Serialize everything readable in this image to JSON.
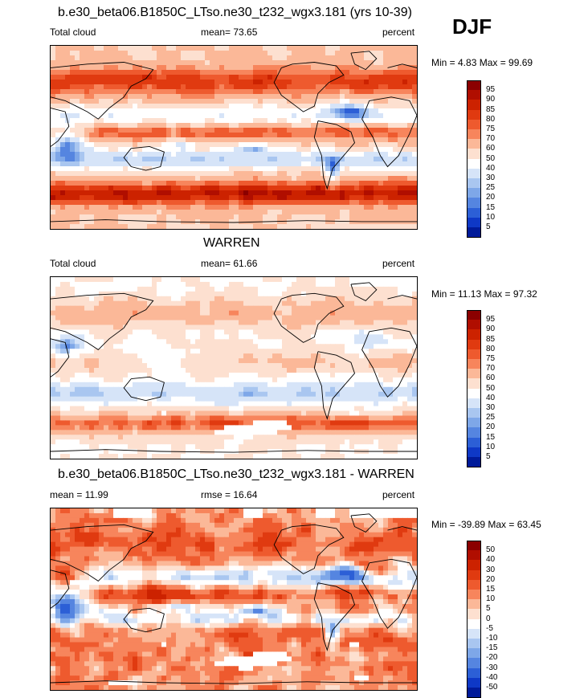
{
  "season": "DJF",
  "panels": [
    {
      "title": "b.e30_beta06.B1850C_LTso.ne30_t232_wgx3.181 (yrs 10-39)",
      "left_label": "Total cloud",
      "center_label": "mean=  73.65",
      "right_label": "percent",
      "minmax": "Min =   4.83 Max =  99.69",
      "colorbar": {
        "labels": [
          "95",
          "90",
          "85",
          "80",
          "75",
          "70",
          "60",
          "50",
          "40",
          "30",
          "25",
          "20",
          "15",
          "10",
          "5"
        ],
        "colors": [
          "#8b0000",
          "#b00e00",
          "#cc2200",
          "#e03a10",
          "#ee5a2e",
          "#f7855c",
          "#fbb898",
          "#fde0d0",
          "#ffffff",
          "#d6e4f8",
          "#a9c6f0",
          "#7ea7e8",
          "#5585e0",
          "#2c5fd6",
          "#0e38c6",
          "#001a99"
        ]
      },
      "field": "model"
    },
    {
      "title": "WARREN",
      "left_label": "Total cloud",
      "center_label": "mean=  61.66",
      "right_label": "percent",
      "minmax": "Min =  11.13 Max =  97.32",
      "colorbar": {
        "labels": [
          "95",
          "90",
          "85",
          "80",
          "75",
          "70",
          "60",
          "50",
          "40",
          "30",
          "25",
          "20",
          "15",
          "10",
          "5"
        ],
        "colors": [
          "#8b0000",
          "#b00e00",
          "#cc2200",
          "#e03a10",
          "#ee5a2e",
          "#f7855c",
          "#fbb898",
          "#fde0d0",
          "#ffffff",
          "#d6e4f8",
          "#a9c6f0",
          "#7ea7e8",
          "#5585e0",
          "#2c5fd6",
          "#0e38c6",
          "#001a99"
        ]
      },
      "field": "obs"
    },
    {
      "title": "b.e30_beta06.B1850C_LTso.ne30_t232_wgx3.181 - WARREN",
      "left_label": "mean =  11.99",
      "center_label": "rmse =  16.64",
      "right_label": "percent",
      "minmax": "Min = -39.89 Max =  63.45",
      "colorbar": {
        "labels": [
          "50",
          "40",
          "30",
          "20",
          "15",
          "10",
          "5",
          "0",
          "-5",
          "-10",
          "-15",
          "-20",
          "-30",
          "-40",
          "-50"
        ],
        "colors": [
          "#8b0000",
          "#b00e00",
          "#cc2200",
          "#e03a10",
          "#ee5a2e",
          "#f7855c",
          "#fbb898",
          "#fde0d0",
          "#ffffff",
          "#d6e4f8",
          "#a9c6f0",
          "#7ea7e8",
          "#5585e0",
          "#2c5fd6",
          "#0e38c6",
          "#001a99"
        ]
      },
      "field": "diff"
    }
  ]
}
